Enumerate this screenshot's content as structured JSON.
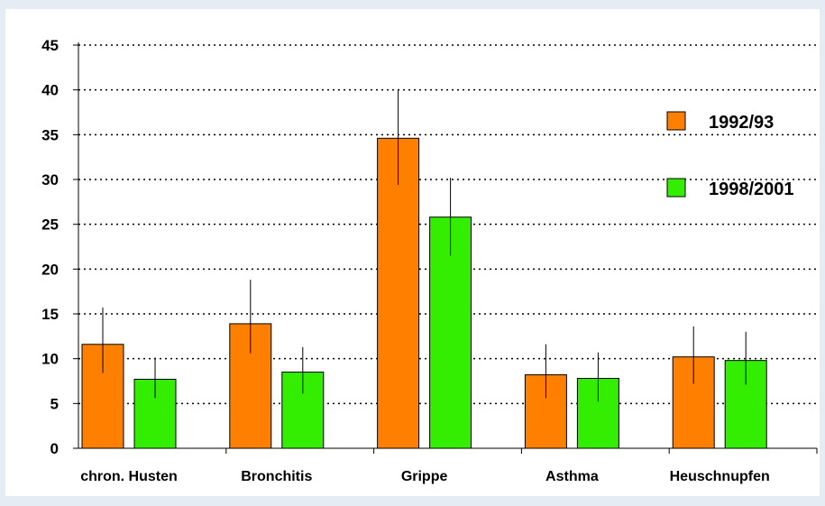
{
  "chart_data": {
    "type": "bar",
    "categories": [
      "chron. Husten",
      "Bronchitis",
      "Grippe",
      "Asthma",
      "Heuschnupfen"
    ],
    "series": [
      {
        "name": "1992/93",
        "values": [
          11.6,
          13.9,
          34.6,
          8.2,
          10.2
        ],
        "error_low": [
          8.4,
          10.6,
          29.4,
          5.6,
          7.2
        ],
        "error_high": [
          15.7,
          18.8,
          40.0,
          11.6,
          13.6
        ]
      },
      {
        "name": "1998/2001",
        "values": [
          7.7,
          8.5,
          25.8,
          7.8,
          9.8
        ],
        "error_low": [
          5.6,
          6.1,
          21.5,
          5.2,
          7.1
        ],
        "error_high": [
          10.1,
          11.3,
          30.2,
          10.7,
          13.0
        ]
      }
    ],
    "y_ticks": [
      "0",
      "5",
      "10",
      "15",
      "20",
      "25",
      "30",
      "35",
      "40",
      "45"
    ],
    "ylim": [
      0,
      45
    ],
    "grid": true,
    "legend_position": "right",
    "colors": {
      "1992/93": "#ff7f00",
      "1998/2001": "#33ee00",
      "background": "#e6ecf4",
      "panel": "#ffffff"
    }
  }
}
